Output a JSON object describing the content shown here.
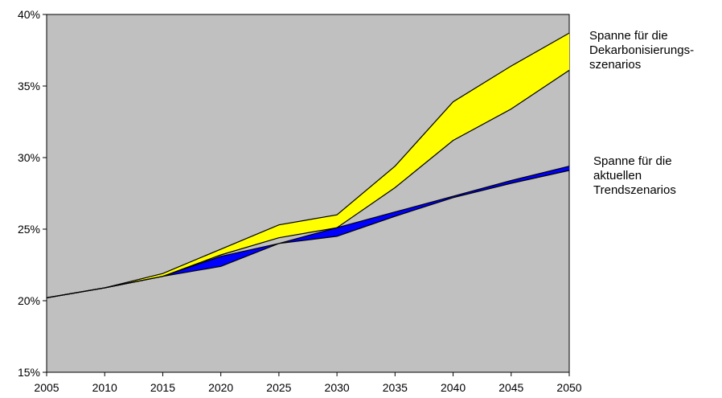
{
  "chart_data": {
    "type": "area",
    "x": [
      2005,
      2010,
      2015,
      2020,
      2025,
      2030,
      2035,
      2040,
      2045,
      2050
    ],
    "xticks": [
      "2005",
      "2010",
      "2015",
      "2020",
      "2025",
      "2030",
      "2035",
      "2040",
      "2045",
      "2050"
    ],
    "yticks": [
      "15%",
      "20%",
      "25%",
      "30%",
      "35%",
      "40%"
    ],
    "ylim": [
      15,
      40
    ],
    "xlim": [
      2005,
      2050
    ],
    "y_unit": "%",
    "grid": false,
    "plot_background": "#c0c0c0",
    "legend_placement": "right",
    "series": [
      {
        "name": "Spanne für die Dekarbonisierungs-szenarios",
        "label_lines": [
          "Spanne für die",
          "Dekarbonisierungs-",
          "szenarios"
        ],
        "color": "#ffff00",
        "upper": [
          20.2,
          20.9,
          21.9,
          23.6,
          25.3,
          26.0,
          29.4,
          33.9,
          36.4,
          38.7
        ],
        "lower": [
          20.2,
          20.9,
          21.7,
          23.2,
          24.4,
          25.1,
          27.9,
          31.2,
          33.4,
          36.1
        ]
      },
      {
        "name": "Spanne für die aktuellen Trendszenarios",
        "label_lines": [
          "Spanne für die",
          "aktuellen",
          "Trendszenarios"
        ],
        "color": "#0000ff",
        "upper": [
          20.2,
          20.9,
          21.7,
          23.1,
          24.0,
          25.1,
          26.2,
          27.3,
          28.4,
          29.4
        ],
        "lower": [
          20.2,
          20.9,
          21.7,
          22.4,
          24.0,
          24.5,
          25.9,
          27.2,
          28.2,
          29.1
        ]
      }
    ]
  }
}
